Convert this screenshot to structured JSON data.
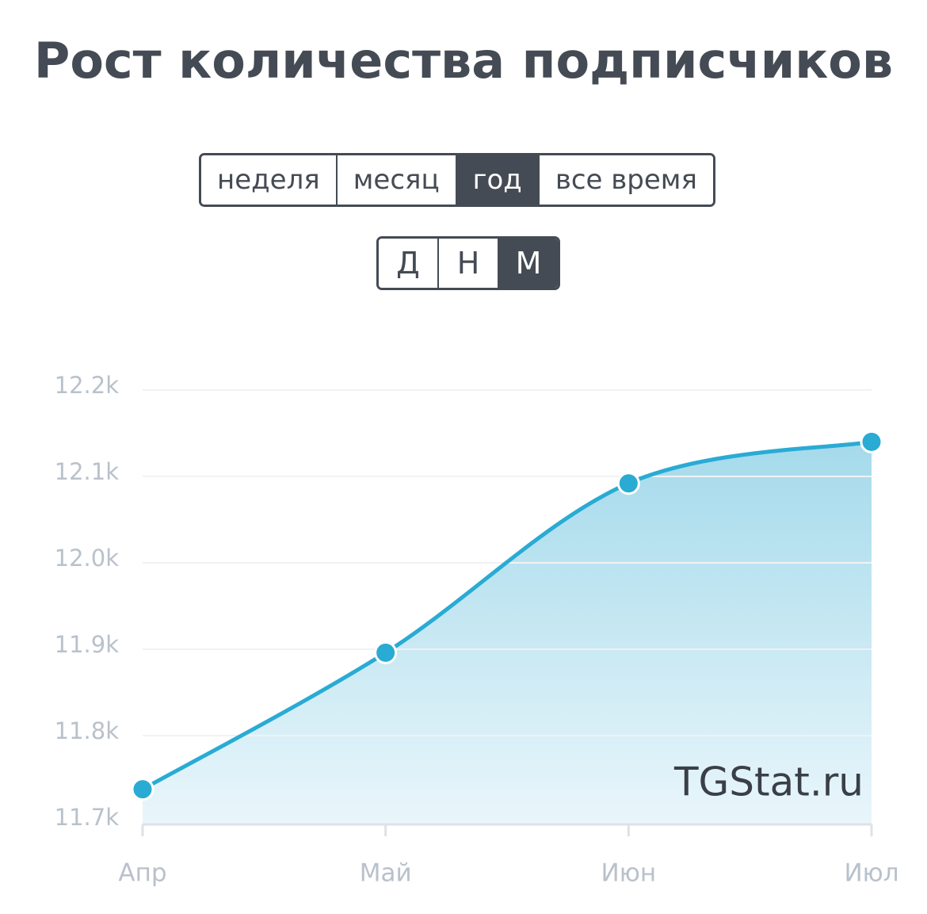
{
  "title": "Рост количества подписчиков",
  "period_buttons": [
    {
      "label": "неделя",
      "active": false
    },
    {
      "label": "месяц",
      "active": false
    },
    {
      "label": "год",
      "active": true
    },
    {
      "label": "все время",
      "active": false
    }
  ],
  "granularity_buttons": [
    {
      "label": "Д",
      "active": false
    },
    {
      "label": "Н",
      "active": false
    },
    {
      "label": "М",
      "active": true
    }
  ],
  "watermark": "TGStat.ru",
  "chart_data": {
    "type": "area",
    "color": "#29abd4",
    "categories": [
      "Апр",
      "Май",
      "Июн",
      "Июл"
    ],
    "values": [
      11738,
      11896,
      12092,
      12140
    ],
    "ylim": [
      11700,
      12200
    ],
    "yticks": [
      {
        "value": 11700,
        "label": "11.7k"
      },
      {
        "value": 11800,
        "label": "11.8k"
      },
      {
        "value": 11900,
        "label": "11.9k"
      },
      {
        "value": 12000,
        "label": "12.0k"
      },
      {
        "value": 12100,
        "label": "12.1k"
      },
      {
        "value": 12200,
        "label": "12.2k"
      }
    ],
    "grid": true
  }
}
